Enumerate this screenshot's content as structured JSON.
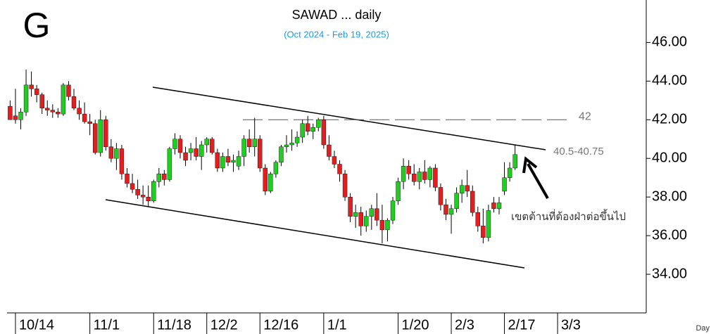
{
  "chart_data": {
    "type": "candlestick",
    "logo": "G",
    "title": "SAWAD ... daily",
    "subtitle": "(Oct 2024 - Feb 19, 2025)",
    "x_axis_label": "Day",
    "up_color": "#22cc22",
    "down_color": "#e02020",
    "ylim": [
      32,
      48.2
    ],
    "yticks": [
      {
        "value": 34,
        "label": "34.00"
      },
      {
        "value": 36,
        "label": "36.00"
      },
      {
        "value": 38,
        "label": "38.00"
      },
      {
        "value": 40,
        "label": "40.00"
      },
      {
        "value": 42,
        "label": "42.00"
      },
      {
        "value": 44,
        "label": "44.00"
      },
      {
        "value": 46,
        "label": "46.00"
      }
    ],
    "categories": [
      null,
      "10/14",
      null,
      null,
      null,
      null,
      null,
      null,
      null,
      null,
      null,
      null,
      null,
      null,
      null,
      "11/1",
      null,
      null,
      null,
      null,
      null,
      null,
      null,
      null,
      null,
      null,
      null,
      "11/18",
      null,
      null,
      null,
      null,
      null,
      null,
      null,
      null,
      null,
      "12/2",
      null,
      null,
      null,
      null,
      null,
      null,
      null,
      null,
      null,
      "12/16",
      null,
      null,
      null,
      null,
      null,
      null,
      null,
      null,
      null,
      null,
      null,
      "1/1",
      null,
      null,
      null,
      null,
      null,
      null,
      null,
      null,
      null,
      null,
      null,
      null,
      null,
      "1/20",
      null,
      null,
      null,
      null,
      null,
      null,
      null,
      null,
      null,
      "2/3",
      null,
      null,
      null,
      null,
      null,
      null,
      null,
      null,
      null,
      "2/17",
      null,
      null,
      null,
      null,
      null,
      null,
      null,
      null,
      null,
      "3/3"
    ],
    "open": [
      42.7,
      42.2,
      42.0,
      42.4,
      43.8,
      43.6,
      43.3,
      42.6,
      42.5,
      42.4,
      42.3,
      43.8,
      43.2,
      42.6,
      42.3,
      41.9,
      41.8,
      40.3,
      42.0,
      40.6,
      40.0,
      40.5,
      39.2,
      38.7,
      38.4,
      38.1,
      38.0,
      37.8,
      38.8,
      39.2,
      38.9,
      40.5,
      41.0,
      40.3,
      40.3,
      40.5,
      40.1,
      40.7,
      41.0,
      40.3,
      39.5,
      40.1,
      39.8,
      39.6,
      40.1,
      41.0,
      40.6,
      41.0,
      39.5,
      38.3,
      39.2,
      39.8,
      40.6,
      40.7,
      40.8,
      41.1,
      41.8,
      41.4,
      41.6,
      42.0,
      40.7,
      40.1,
      39.7,
      39.2,
      38.0,
      37.0,
      37.2,
      36.5,
      37.0,
      37.4,
      36.8,
      36.3,
      36.8,
      37.8,
      38.8,
      39.6,
      39.2,
      38.8,
      39.3,
      38.9,
      39.5,
      38.5,
      37.6,
      37.1,
      37.4,
      38.2,
      38.6,
      38.3,
      37.2,
      36.5,
      35.9,
      37.7,
      37.4,
      38.3,
      39.0,
      39.5,
      null,
      null,
      null,
      null,
      null,
      null,
      null,
      null
    ],
    "high": [
      43.0,
      43.6,
      42.6,
      44.6,
      44.5,
      43.8,
      43.4,
      43.0,
      42.8,
      42.6,
      43.9,
      44.0,
      43.6,
      43.0,
      42.9,
      42.3,
      42.0,
      42.5,
      42.2,
      41.0,
      40.8,
      40.7,
      39.5,
      39.2,
      38.9,
      38.6,
      38.6,
      38.9,
      39.5,
      39.4,
      40.6,
      41.3,
      41.2,
      40.6,
      40.8,
      41.1,
      40.9,
      41.1,
      41.1,
      40.5,
      40.3,
      40.5,
      40.2,
      40.4,
      41.2,
      41.5,
      42.1,
      41.2,
      39.7,
      39.3,
      39.9,
      40.7,
      41.2,
      41.5,
      41.4,
      42.0,
      42.2,
      41.8,
      42.1,
      42.2,
      41.2,
      40.4,
      39.9,
      39.4,
      38.2,
      37.6,
      37.5,
      37.3,
      37.6,
      38.2,
      37.6,
      36.9,
      38.0,
      39.0,
      40.0,
      39.9,
      39.7,
      39.5,
      39.9,
      39.6,
      39.7,
      38.7,
      37.9,
      37.6,
      38.5,
      38.9,
      39.4,
      38.6,
      37.5,
      37.4,
      37.6,
      38.0,
      38.0,
      39.8,
      39.8,
      40.7,
      null,
      null,
      null,
      null,
      null,
      null,
      null,
      null
    ],
    "low": [
      42.0,
      41.8,
      41.5,
      42.2,
      43.2,
      42.9,
      42.3,
      42.2,
      42.1,
      42.1,
      42.2,
      43.0,
      42.5,
      42.0,
      41.8,
      41.2,
      40.2,
      40.1,
      40.4,
      39.8,
      39.4,
      38.9,
      38.5,
      38.2,
      37.9,
      37.6,
      37.5,
      37.7,
      38.5,
      38.6,
      38.8,
      40.2,
      40.0,
      39.6,
      39.9,
      39.9,
      39.4,
      40.3,
      40.2,
      39.3,
      39.3,
      39.6,
      39.3,
      39.4,
      39.6,
      40.3,
      40.1,
      39.3,
      38.1,
      38.2,
      39.0,
      39.6,
      40.3,
      40.4,
      40.6,
      40.8,
      41.2,
      41.0,
      41.4,
      40.5,
      39.9,
      39.5,
      38.8,
      37.8,
      36.7,
      36.4,
      36.0,
      36.2,
      36.3,
      36.5,
      35.6,
      35.7,
      36.6,
      37.6,
      38.4,
      38.9,
      38.6,
      38.4,
      38.7,
      38.5,
      38.3,
      37.3,
      36.8,
      36.1,
      37.2,
      37.7,
      38.0,
      37.0,
      36.2,
      35.6,
      35.7,
      37.2,
      37.1,
      38.1,
      38.8,
      39.4,
      null,
      null,
      null,
      null,
      null,
      null,
      null,
      null
    ],
    "close": [
      42.0,
      42.0,
      42.4,
      43.8,
      43.6,
      43.3,
      42.6,
      42.5,
      42.4,
      42.3,
      43.8,
      43.2,
      42.6,
      42.3,
      41.9,
      41.8,
      40.3,
      42.0,
      40.6,
      40.0,
      40.5,
      39.2,
      38.7,
      38.4,
      38.1,
      38.0,
      37.8,
      38.8,
      39.2,
      38.9,
      40.5,
      41.0,
      40.3,
      39.9,
      40.5,
      40.1,
      40.7,
      41.0,
      40.3,
      39.5,
      40.1,
      39.8,
      39.9,
      40.1,
      41.0,
      40.6,
      41.0,
      39.5,
      38.3,
      39.2,
      39.8,
      40.6,
      40.7,
      40.8,
      41.1,
      41.8,
      41.4,
      41.6,
      42.0,
      40.7,
      40.1,
      39.7,
      39.2,
      38.0,
      37.0,
      37.2,
      36.5,
      37.0,
      37.4,
      36.8,
      36.3,
      36.8,
      37.8,
      38.8,
      39.6,
      39.2,
      38.8,
      39.3,
      38.9,
      39.5,
      38.5,
      37.6,
      37.1,
      37.4,
      38.2,
      38.6,
      38.3,
      37.2,
      36.5,
      35.9,
      37.3,
      37.4,
      37.7,
      39.0,
      39.5,
      40.2,
      null,
      null,
      null,
      null,
      null,
      null,
      null,
      null
    ],
    "resistance_line": {
      "value": 42,
      "label": "42"
    },
    "annotations": [
      "40.5-40.75",
      "เขตต้านที่ต้องฝ่าต่อขึ้นไป"
    ]
  }
}
